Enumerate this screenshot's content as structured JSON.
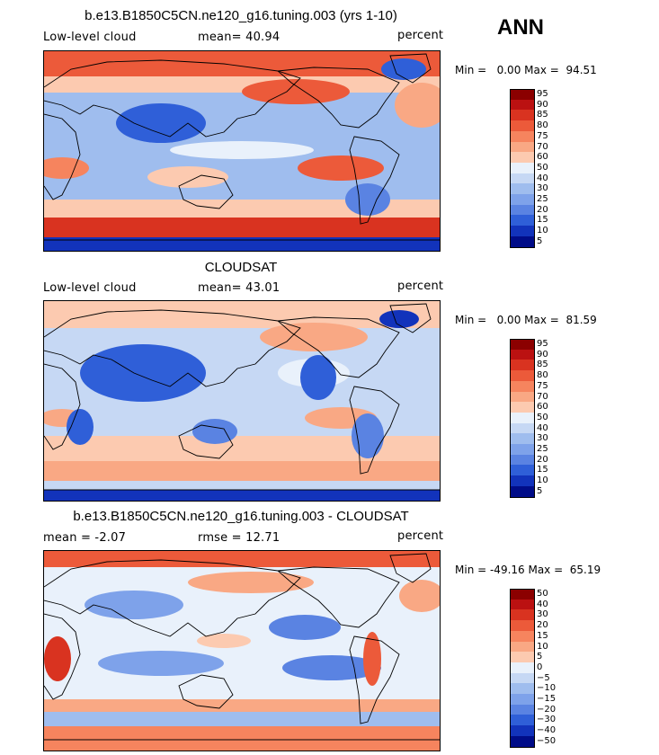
{
  "season_label": "ANN",
  "panels": [
    {
      "title": "b.e13.B1850C5CN.ne120_g16.tuning.003 (yrs 1-10)",
      "left_label": "Low-level cloud",
      "middle_label": "mean=  40.94",
      "units": "percent",
      "minmax": "Min =   0.00 Max =  94.51",
      "colorbar_ticks": [
        "95",
        "90",
        "85",
        "80",
        "75",
        "70",
        "60",
        "50",
        "40",
        "30",
        "25",
        "20",
        "15",
        "10",
        "5"
      ],
      "field_bias": 0
    },
    {
      "title": "CLOUDSAT",
      "left_label": "Low-level cloud",
      "middle_label": "mean=  43.01",
      "units": "percent",
      "minmax": "Min =   0.00 Max =  81.59",
      "colorbar_ticks": [
        "95",
        "90",
        "85",
        "80",
        "75",
        "70",
        "60",
        "50",
        "40",
        "30",
        "25",
        "20",
        "15",
        "10",
        "5"
      ],
      "field_bias": -1
    },
    {
      "title": "b.e13.B1850C5CN.ne120_g16.tuning.003 - CLOUDSAT",
      "left_label": "mean =  -2.07",
      "middle_label": "rmse =  12.71",
      "units": "percent",
      "minmax": "Min = -49.16 Max =  65.19",
      "colorbar_ticks": [
        "50",
        "40",
        "30",
        "20",
        "15",
        "10",
        "5",
        "0",
        "−5",
        "−10",
        "−15",
        "−20",
        "−30",
        "−40",
        "−50"
      ],
      "field_bias": 0
    }
  ],
  "colorscale": [
    "#8b0000",
    "#bb1111",
    "#d93320",
    "#ec5a3a",
    "#f6845e",
    "#f9a884",
    "#fccab0",
    "#e9f1fb",
    "#c6d8f4",
    "#9fbdee",
    "#7ea2ea",
    "#5a83e2",
    "#2f5fd8",
    "#1233bb",
    "#000c88"
  ]
}
